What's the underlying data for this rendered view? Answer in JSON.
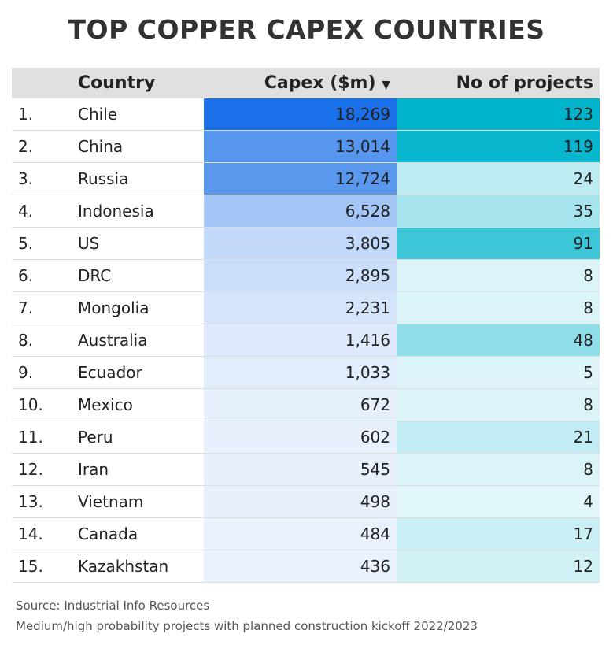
{
  "header": {
    "title": "TOP COPPER CAPEX COUNTRIES"
  },
  "table": {
    "columns": [
      "Country",
      "Capex ($m)",
      "No of projects"
    ],
    "rows": [
      [
        "1.",
        "Chile",
        "18,269",
        "123"
      ],
      [
        "2.",
        "China",
        "13,014",
        "119"
      ],
      [
        "3.",
        "Russia",
        "12,724",
        "24"
      ],
      [
        "4.",
        "Indonesia",
        "6,528",
        "35"
      ],
      [
        "5.",
        "US",
        "3,805",
        "91"
      ],
      [
        "6.",
        "DRC",
        "2,895",
        "8"
      ],
      [
        "7.",
        "Mongolia",
        "2,231",
        "8"
      ],
      [
        "8.",
        "Australia",
        "1,416",
        "48"
      ],
      [
        "9.",
        "Ecuador",
        "1,033",
        "5"
      ],
      [
        "10.",
        "Mexico",
        "672",
        "8"
      ],
      [
        "11.",
        "Peru",
        "602",
        "21"
      ],
      [
        "12.",
        "Iran",
        "545",
        "8"
      ],
      [
        "13.",
        "Vietnam",
        "498",
        "4"
      ],
      [
        "14.",
        "Canada",
        "484",
        "17"
      ],
      [
        "15.",
        "Kazakhstan",
        "436",
        "12"
      ]
    ],
    "heat_colors": [
      [
        "#eef4fd",
        "#1a70e8"
      ],
      [
        "#e9f8fb",
        "#00b4cc"
      ]
    ]
  },
  "footer": {
    "source": "Source: Industrial Info Resources",
    "note": "Medium/high probability projects with planned construction kickoff 2022/2023"
  }
}
